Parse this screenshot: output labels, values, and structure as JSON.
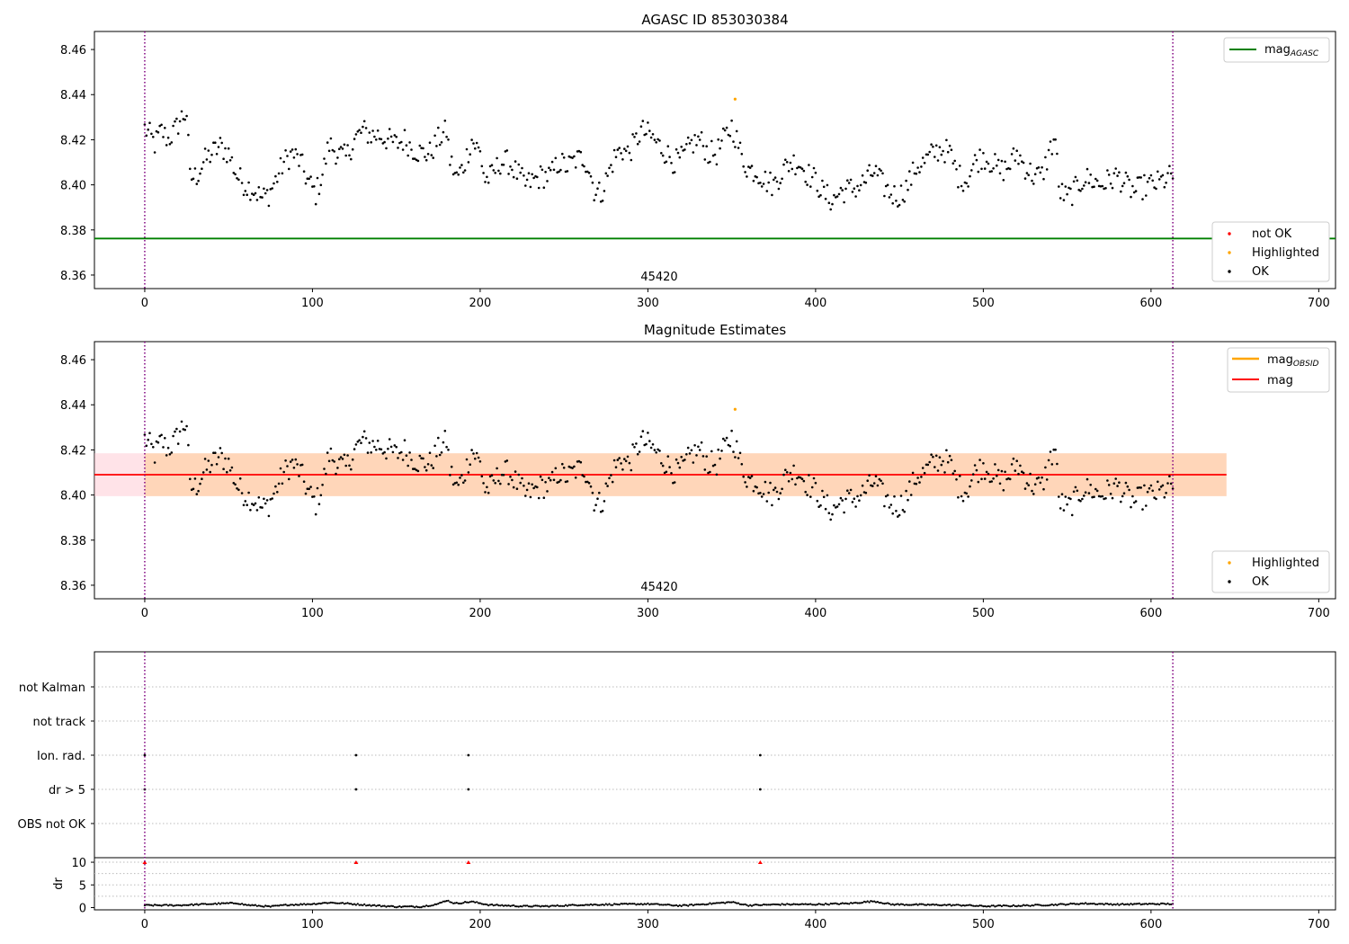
{
  "chart_data": [
    {
      "type": "scatter",
      "title": "AGASC ID 853030384",
      "xlabel": "",
      "ylabel": "",
      "xlim": [
        -30,
        710
      ],
      "ylim": [
        8.354,
        8.468
      ],
      "xticks": [
        0,
        100,
        200,
        300,
        400,
        500,
        600,
        700
      ],
      "yticks": [
        8.36,
        8.38,
        8.4,
        8.42,
        8.44,
        8.46
      ],
      "grid": false,
      "annotation": "45420",
      "annotation_x": 305,
      "vlines": [
        0,
        613
      ],
      "hlines": [
        {
          "name": "mag_AGASC",
          "y": 8.3762,
          "color": "#008000"
        }
      ],
      "highlighted_points": [
        {
          "x": 352,
          "y": 8.438
        }
      ],
      "ok_series_description_x_range": [
        0,
        613
      ],
      "legends": [
        {
          "position": "upper-right",
          "entries": [
            {
              "label": "mag",
              "subscript": "AGASC",
              "kind": "line",
              "color": "#008000"
            }
          ]
        },
        {
          "position": "lower-right",
          "entries": [
            {
              "label": "not OK",
              "kind": "marker",
              "color": "#ff0000"
            },
            {
              "label": "Highlighted",
              "kind": "marker",
              "color": "#ffa500"
            },
            {
              "label": "OK",
              "kind": "marker",
              "color": "#000000"
            }
          ]
        }
      ],
      "anchors": [
        [
          0,
          8.425
        ],
        [
          3,
          8.422
        ],
        [
          6,
          8.418
        ],
        [
          10,
          8.424
        ],
        [
          14,
          8.42
        ],
        [
          18,
          8.424
        ],
        [
          22,
          8.43
        ],
        [
          25,
          8.432
        ],
        [
          27,
          8.403
        ],
        [
          31,
          8.404
        ],
        [
          35,
          8.41
        ],
        [
          40,
          8.414
        ],
        [
          45,
          8.417
        ],
        [
          50,
          8.414
        ],
        [
          55,
          8.404
        ],
        [
          60,
          8.4
        ],
        [
          65,
          8.398
        ],
        [
          70,
          8.394
        ],
        [
          74,
          8.396
        ],
        [
          78,
          8.402
        ],
        [
          83,
          8.41
        ],
        [
          88,
          8.414
        ],
        [
          93,
          8.41
        ],
        [
          97,
          8.402
        ],
        [
          102,
          8.396
        ],
        [
          106,
          8.405
        ],
        [
          110,
          8.418
        ],
        [
          115,
          8.414
        ],
        [
          120,
          8.412
        ],
        [
          125,
          8.42
        ],
        [
          130,
          8.424
        ],
        [
          135,
          8.422
        ],
        [
          140,
          8.422
        ],
        [
          145,
          8.42
        ],
        [
          150,
          8.418
        ],
        [
          155,
          8.42
        ],
        [
          160,
          8.416
        ],
        [
          165,
          8.414
        ],
        [
          170,
          8.414
        ],
        [
          175,
          8.42
        ],
        [
          180,
          8.424
        ],
        [
          182,
          8.411
        ],
        [
          186,
          8.403
        ],
        [
          190,
          8.408
        ],
        [
          195,
          8.42
        ],
        [
          200,
          8.414
        ],
        [
          203,
          8.402
        ],
        [
          207,
          8.404
        ],
        [
          212,
          8.41
        ],
        [
          217,
          8.41
        ],
        [
          222,
          8.405
        ],
        [
          227,
          8.4
        ],
        [
          232,
          8.402
        ],
        [
          237,
          8.404
        ],
        [
          242,
          8.404
        ],
        [
          247,
          8.41
        ],
        [
          252,
          8.408
        ],
        [
          257,
          8.411
        ],
        [
          262,
          8.412
        ],
        [
          265,
          8.407
        ],
        [
          268,
          8.398
        ],
        [
          272,
          8.396
        ],
        [
          276,
          8.404
        ],
        [
          280,
          8.412
        ],
        [
          284,
          8.416
        ],
        [
          288,
          8.414
        ],
        [
          292,
          8.418
        ],
        [
          296,
          8.424
        ],
        [
          301,
          8.422
        ],
        [
          306,
          8.418
        ],
        [
          311,
          8.414
        ],
        [
          316,
          8.41
        ],
        [
          321,
          8.412
        ],
        [
          326,
          8.418
        ],
        [
          331,
          8.42
        ],
        [
          336,
          8.414
        ],
        [
          341,
          8.414
        ],
        [
          346,
          8.421
        ],
        [
          350,
          8.426
        ],
        [
          353,
          8.42
        ],
        [
          356,
          8.412
        ],
        [
          360,
          8.407
        ],
        [
          365,
          8.406
        ],
        [
          370,
          8.402
        ],
        [
          375,
          8.4
        ],
        [
          380,
          8.406
        ],
        [
          385,
          8.41
        ],
        [
          390,
          8.41
        ],
        [
          395,
          8.405
        ],
        [
          400,
          8.402
        ],
        [
          405,
          8.396
        ],
        [
          410,
          8.393
        ],
        [
          415,
          8.397
        ],
        [
          420,
          8.398
        ],
        [
          425,
          8.399
        ],
        [
          430,
          8.402
        ],
        [
          435,
          8.406
        ],
        [
          440,
          8.4
        ],
        [
          445,
          8.396
        ],
        [
          450,
          8.395
        ],
        [
          455,
          8.4
        ],
        [
          460,
          8.408
        ],
        [
          465,
          8.41
        ],
        [
          470,
          8.414
        ],
        [
          475,
          8.416
        ],
        [
          480,
          8.414
        ],
        [
          485,
          8.404
        ],
        [
          490,
          8.402
        ],
        [
          495,
          8.41
        ],
        [
          500,
          8.413
        ],
        [
          505,
          8.41
        ],
        [
          510,
          8.406
        ],
        [
          515,
          8.408
        ],
        [
          520,
          8.414
        ],
        [
          525,
          8.408
        ],
        [
          530,
          8.404
        ],
        [
          535,
          8.404
        ],
        [
          540,
          8.416
        ],
        [
          543,
          8.421
        ],
        [
          545,
          8.398
        ],
        [
          550,
          8.394
        ],
        [
          555,
          8.398
        ],
        [
          560,
          8.403
        ],
        [
          565,
          8.402
        ],
        [
          570,
          8.4
        ],
        [
          575,
          8.402
        ],
        [
          580,
          8.404
        ],
        [
          585,
          8.4
        ],
        [
          590,
          8.397
        ],
        [
          595,
          8.399
        ],
        [
          600,
          8.4
        ],
        [
          605,
          8.401
        ],
        [
          610,
          8.403
        ],
        [
          613,
          8.404
        ]
      ]
    },
    {
      "type": "scatter",
      "title": "Magnitude Estimates",
      "xlim": [
        -30,
        710
      ],
      "ylim": [
        8.354,
        8.468
      ],
      "xticks": [
        0,
        100,
        200,
        300,
        400,
        500,
        600,
        700
      ],
      "yticks": [
        8.36,
        8.38,
        8.4,
        8.42,
        8.44,
        8.46
      ],
      "grid": false,
      "annotation": "45420",
      "annotation_x": 305,
      "vlines": [
        0,
        613
      ],
      "mag_line": {
        "y": 8.409,
        "x_range": [
          -30,
          645
        ],
        "color": "#ff0000"
      },
      "mag_band": {
        "y_range": [
          8.3995,
          8.4185
        ],
        "x_range": [
          -30,
          645
        ],
        "color": "#ffc0cb"
      },
      "obsid_band": {
        "y_range": [
          8.3995,
          8.4185
        ],
        "x_range": [
          0,
          645
        ],
        "color": "#ffa500"
      },
      "highlighted_points": [
        {
          "x": 352,
          "y": 8.438
        }
      ],
      "legends": [
        {
          "position": "upper-right",
          "entries": [
            {
              "label": "mag",
              "subscript": "OBSID",
              "kind": "line",
              "color": "#ffa500"
            },
            {
              "label": "mag",
              "kind": "line",
              "color": "#ff0000"
            }
          ]
        },
        {
          "position": "lower-right",
          "entries": [
            {
              "label": "Highlighted",
              "kind": "marker",
              "color": "#ffa500"
            },
            {
              "label": "OK",
              "kind": "marker",
              "color": "#000000"
            }
          ]
        }
      ]
    },
    {
      "type": "scatter",
      "title": "",
      "xlim": [
        -30,
        710
      ],
      "categories": [
        "not Kalman",
        "not track",
        "Ion. rad.",
        "dr > 5",
        "OBS not OK"
      ],
      "flag_points": {
        "Ion. rad.": [
          0,
          126,
          193,
          367
        ],
        "dr > 5": [
          0,
          126,
          193,
          367
        ]
      },
      "vlines": [
        0,
        613
      ],
      "grid": true
    },
    {
      "type": "scatter",
      "title": "",
      "ylabel": "dr",
      "xlim": [
        -30,
        710
      ],
      "ylim": [
        -0.5,
        11
      ],
      "xticks": [
        0,
        100,
        200,
        300,
        400,
        500,
        600,
        700
      ],
      "yticks": [
        0,
        5,
        10
      ],
      "grid": true,
      "clipped_points": [
        0,
        126,
        193,
        367
      ],
      "vlines": [
        0,
        613
      ],
      "dr_anchors": [
        [
          0,
          0.5
        ],
        [
          20,
          0.5
        ],
        [
          40,
          0.8
        ],
        [
          55,
          1.0
        ],
        [
          60,
          0.6
        ],
        [
          75,
          0.2
        ],
        [
          85,
          0.6
        ],
        [
          100,
          0.8
        ],
        [
          110,
          1.1
        ],
        [
          120,
          0.9
        ],
        [
          135,
          0.5
        ],
        [
          150,
          0.2
        ],
        [
          165,
          0.2
        ],
        [
          175,
          0.8
        ],
        [
          180,
          1.6
        ],
        [
          185,
          0.9
        ],
        [
          195,
          1.3
        ],
        [
          205,
          0.6
        ],
        [
          225,
          0.3
        ],
        [
          240,
          0.3
        ],
        [
          260,
          0.6
        ],
        [
          280,
          0.7
        ],
        [
          300,
          0.8
        ],
        [
          320,
          0.4
        ],
        [
          335,
          0.8
        ],
        [
          350,
          1.2
        ],
        [
          360,
          0.5
        ],
        [
          380,
          0.7
        ],
        [
          400,
          0.7
        ],
        [
          420,
          0.9
        ],
        [
          435,
          1.4
        ],
        [
          445,
          0.7
        ],
        [
          470,
          0.6
        ],
        [
          490,
          0.5
        ],
        [
          500,
          0.3
        ],
        [
          520,
          0.4
        ],
        [
          540,
          0.6
        ],
        [
          560,
          0.9
        ],
        [
          580,
          0.7
        ],
        [
          600,
          0.8
        ],
        [
          613,
          0.8
        ]
      ]
    }
  ]
}
